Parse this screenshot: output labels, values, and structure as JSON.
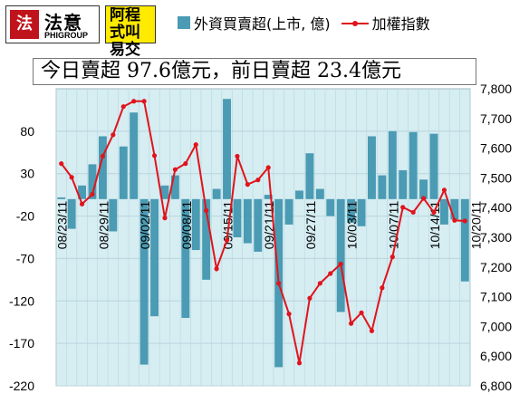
{
  "logos": {
    "logo1_sign": "法",
    "logo1_name": "法意",
    "logo1_sub": "PHIGROUP",
    "logo2_text": "阿程式叫易交"
  },
  "summary": "今日賣超 97.6億元，前日賣超 23.4億元",
  "legend": {
    "bar_label": "外資買賣超(上市, 億)",
    "line_label": "加權指數"
  },
  "colors": {
    "bar": "#4a9bb3",
    "line": "#e0141c",
    "plot_bg": "#d6edf2",
    "grid": "#b8d6de"
  },
  "chart_data": {
    "type": "bar",
    "y_left_ticks": [
      80,
      30,
      -20,
      -70,
      -120,
      -170,
      -220
    ],
    "y_left_range": [
      -220,
      130
    ],
    "y_right_ticks": [
      7800,
      7700,
      7600,
      7500,
      7400,
      7300,
      7200,
      7100,
      7000,
      6900,
      6800
    ],
    "y_right_range": [
      6800,
      7800
    ],
    "x_tick_labels": [
      "08/23/11",
      "08/29/11",
      "09/02/11",
      "09/08/11",
      "09/15/11",
      "09/21/11",
      "09/27/11",
      "10/03/11",
      "10/07/11",
      "10/14/11",
      "10/20/11"
    ],
    "x_tick_indices": [
      0,
      4,
      8,
      12,
      16,
      20,
      24,
      28,
      32,
      36,
      40
    ],
    "series": [
      {
        "name": "外資買賣超(上市, 億)",
        "kind": "bar",
        "values": [
          2,
          -35,
          16,
          41,
          74,
          -38,
          62,
          102,
          -195,
          -138,
          16,
          28,
          -140,
          -60,
          -95,
          12,
          118,
          -45,
          -52,
          -62,
          5,
          -198,
          -30,
          10,
          54,
          12,
          -20,
          -133,
          -28,
          -32,
          74,
          28,
          80,
          34,
          79,
          23,
          77,
          -30,
          -24,
          -97
        ]
      },
      {
        "name": "加權指數",
        "kind": "line",
        "values": [
          7548,
          7502,
          7412,
          7445,
          7573,
          7645,
          7740,
          7758,
          7758,
          7575,
          7365,
          7528,
          7548,
          7612,
          7390,
          7194,
          7290,
          7573,
          7478,
          7493,
          7535,
          7145,
          7042,
          6877,
          7095,
          7145,
          7178,
          7210,
          7010,
          7046,
          6985,
          7130,
          7234,
          7401,
          7384,
          7431,
          7384,
          7459,
          7357,
          7355
        ]
      }
    ]
  }
}
